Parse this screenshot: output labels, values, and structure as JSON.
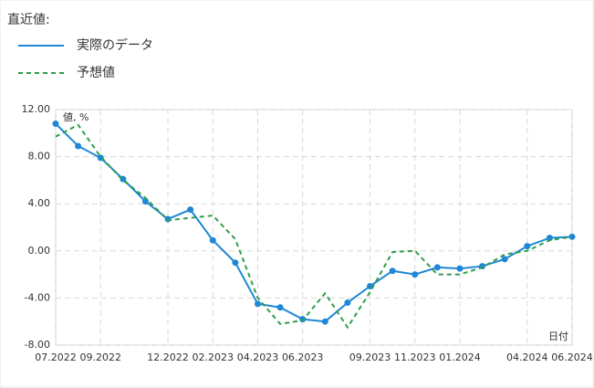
{
  "chart_data": {
    "type": "line",
    "legend_title": "直近値:",
    "y_label": "値, %",
    "x_label": "日付",
    "categories": [
      "07.2022",
      null,
      "09.2022",
      null,
      null,
      "12.2022",
      null,
      "02.2023",
      null,
      "04.2023",
      null,
      "06.2023",
      null,
      null,
      "09.2023",
      null,
      "11.2023",
      null,
      "01.2024",
      null,
      null,
      "04.2024",
      null,
      "06.2024"
    ],
    "series": [
      {
        "name": "実際のデータ",
        "color": "#1e88d6",
        "style": "solid",
        "markers": true,
        "values": [
          10.8,
          8.9,
          7.9,
          6.1,
          4.2,
          2.7,
          3.5,
          0.9,
          -1.0,
          -4.5,
          -4.8,
          -5.8,
          -6.0,
          -4.4,
          -3.0,
          -1.7,
          -2.0,
          -1.4,
          -1.5,
          -1.3,
          -0.7,
          0.4,
          1.1,
          1.2
        ]
      },
      {
        "name": "予想値",
        "color": "#2e9e4a",
        "style": "dashed",
        "markers": false,
        "values": [
          9.7,
          10.7,
          8.0,
          6.0,
          4.5,
          2.6,
          2.8,
          3.0,
          1.0,
          -4.0,
          -6.2,
          -5.9,
          -3.6,
          -6.5,
          -3.5,
          -0.1,
          0.0,
          -2.0,
          -2.0,
          -1.4,
          -0.3,
          0.0,
          0.9,
          1.2
        ]
      }
    ],
    "ylim": [
      -8,
      12
    ],
    "yticks": [
      {
        "value": -8,
        "label": "-8.00"
      },
      {
        "value": -4,
        "label": "-4.00"
      },
      {
        "value": 0,
        "label": "0.00"
      },
      {
        "value": 4,
        "label": "4.00"
      },
      {
        "value": 8,
        "label": "8.00"
      },
      {
        "value": 12,
        "label": "12.00"
      }
    ],
    "grid": true
  }
}
